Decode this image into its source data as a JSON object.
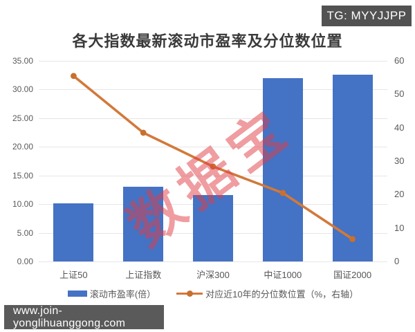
{
  "badges": {
    "tg": "TG: MYYJJPP",
    "site": "www.join-yonglihuanggong.com"
  },
  "watermark": "数据宝",
  "chart_data": {
    "type": "bar",
    "title": "各大指数最新滚动市盈率及分位数位置",
    "categories": [
      "上证50",
      "上证指数",
      "沪深300",
      "中证1000",
      "国证2000"
    ],
    "series": [
      {
        "name": "滚动市盈率(倍）",
        "type": "bar",
        "axis": "left",
        "color": "#4472c4",
        "values": [
          10.1,
          13.0,
          11.6,
          32.0,
          32.6
        ]
      },
      {
        "name": "对应近10年的分位数位置（%，右轴）",
        "type": "line",
        "axis": "right",
        "color": "#d2793a",
        "values": [
          55.5,
          38.5,
          28.4,
          20.5,
          6.7
        ]
      }
    ],
    "left_axis": {
      "min": 0,
      "max": 35,
      "step": 5,
      "tick_labels": [
        "0.00",
        "5.00",
        "10.00",
        "15.00",
        "20.00",
        "25.00",
        "30.00",
        "35.00"
      ]
    },
    "right_axis": {
      "min": 0,
      "max": 60,
      "step": 10,
      "tick_labels": [
        "0",
        "10",
        "20",
        "30",
        "40",
        "50",
        "60"
      ]
    },
    "grid": true,
    "legend_position": "bottom"
  }
}
